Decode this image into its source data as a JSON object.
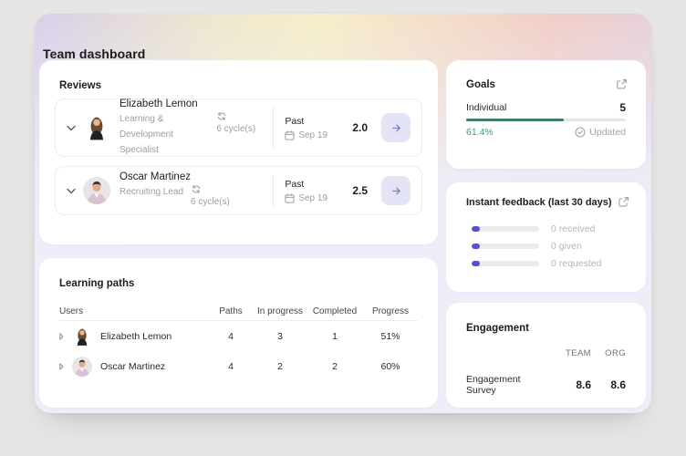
{
  "page": {
    "title": "Team dashboard"
  },
  "reviews": {
    "title": "Reviews",
    "rows": [
      {
        "name": "Elizabeth Lemon",
        "role": "Learning & Development Specialist",
        "cycles": "6 cycle(s)",
        "period": "Past",
        "date": "Sep 19",
        "score": "2.0"
      },
      {
        "name": "Oscar Martinez",
        "role": "Recruiting Lead",
        "cycles": "6 cycle(s)",
        "period": "Past",
        "date": "Sep 19",
        "score": "2.5"
      }
    ]
  },
  "learning_paths": {
    "title": "Learning paths",
    "columns": [
      "Users",
      "Paths",
      "In progress",
      "Completed",
      "Progress"
    ],
    "rows": [
      {
        "user": "Elizabeth Lemon",
        "paths": "4",
        "in_progress": "3",
        "completed": "1",
        "progress": "51%"
      },
      {
        "user": "Oscar Martinez",
        "paths": "4",
        "in_progress": "2",
        "completed": "2",
        "progress": "60%"
      }
    ]
  },
  "goals": {
    "title": "Goals",
    "category": "Individual",
    "count": "5",
    "percent": "61.4%",
    "percent_value": 61.4,
    "status": "Updated"
  },
  "feedback": {
    "title": "Instant feedback (last 30 days)",
    "rows": [
      {
        "label": "0 received",
        "value": 0
      },
      {
        "label": "0 given",
        "value": 0
      },
      {
        "label": "0 requested",
        "value": 0
      }
    ]
  },
  "engagement": {
    "title": "Engagement",
    "columns": [
      "TEAM",
      "ORG"
    ],
    "rows": [
      {
        "label": "Engagement Survey",
        "team": "8.6",
        "org": "8.6"
      }
    ]
  },
  "colors": {
    "progress_green": "#3f7e68",
    "green_text": "#3f9e74",
    "feedback_purple": "#5451d4",
    "arrow_button_bg": "#e4e4f6"
  }
}
